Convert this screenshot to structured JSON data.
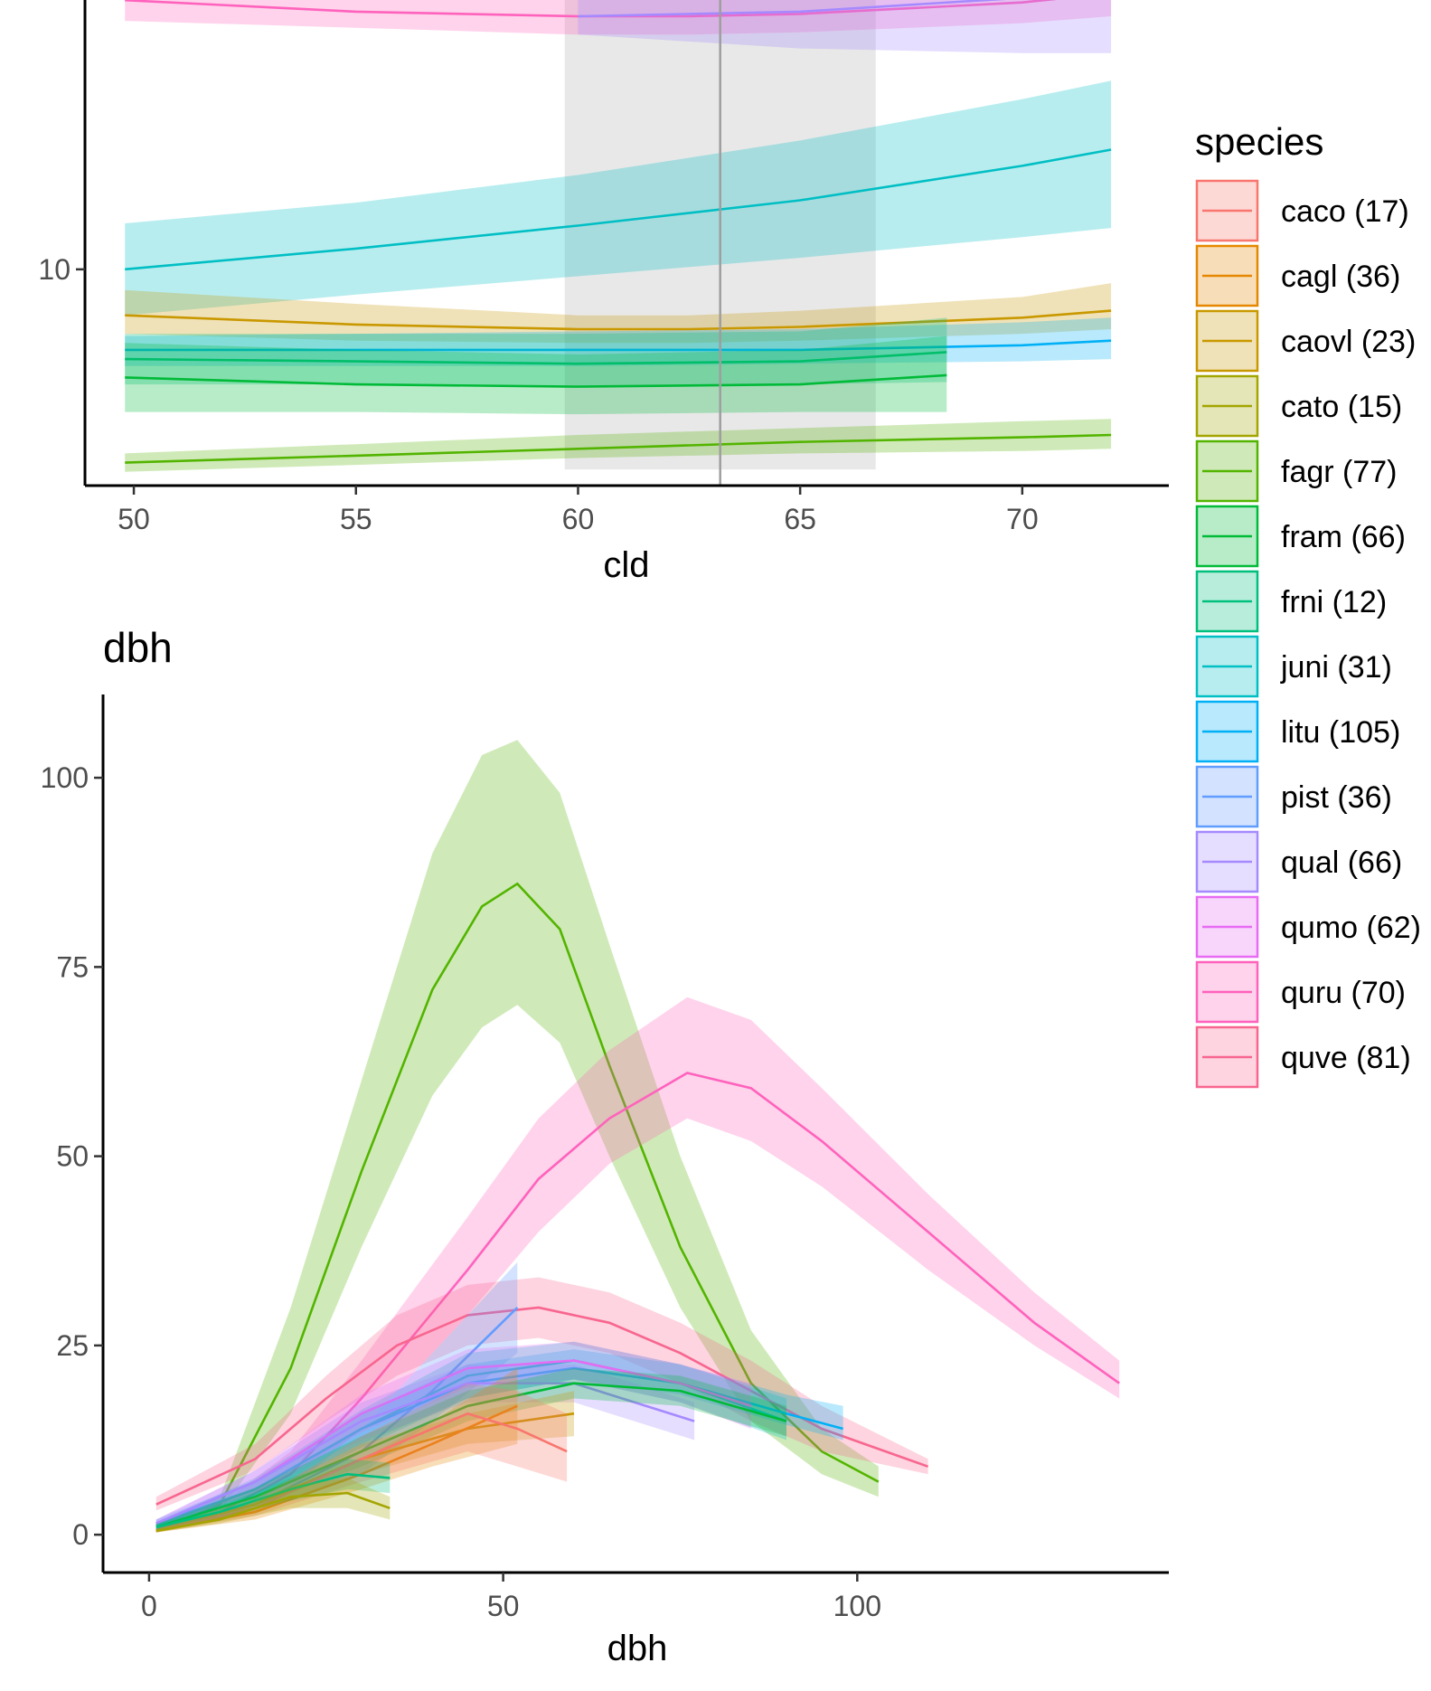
{
  "colors": {
    "caco": "#F8766D",
    "cagl": "#E58700",
    "caovl": "#C99800",
    "cato": "#A3A500",
    "fagr": "#53B400",
    "fram": "#00BA38",
    "frni": "#00BF7D",
    "juni": "#00BFC4",
    "litu": "#00B0F6",
    "pist": "#619CFF",
    "qual": "#A58AFF",
    "qumo": "#E76BF3",
    "quru": "#FF62BC",
    "quve": "#F8668F"
  },
  "legend": {
    "title": "species",
    "items": [
      {
        "key": "caco",
        "label": "caco (17)"
      },
      {
        "key": "cagl",
        "label": "cagl (36)"
      },
      {
        "key": "caovl",
        "label": "caovl (23)"
      },
      {
        "key": "cato",
        "label": "cato (15)"
      },
      {
        "key": "fagr",
        "label": "fagr (77)"
      },
      {
        "key": "fram",
        "label": "fram (66)"
      },
      {
        "key": "frni",
        "label": "frni (12)"
      },
      {
        "key": "juni",
        "label": "juni (31)"
      },
      {
        "key": "litu",
        "label": "litu (105)"
      },
      {
        "key": "pist",
        "label": "pist (36)"
      },
      {
        "key": "qual",
        "label": "qual (66)"
      },
      {
        "key": "qumo",
        "label": "qumo (62)"
      },
      {
        "key": "quru",
        "label": "quru (70)"
      },
      {
        "key": "quve",
        "label": "quve (81)"
      }
    ]
  },
  "chart_data": [
    {
      "type": "line",
      "title": "",
      "xlabel": "cld",
      "ylabel": "",
      "xlim": [
        48.9,
        73.3
      ],
      "ylim": [
        0.6,
        22.1
      ],
      "xticks": [
        50,
        55,
        60,
        65,
        70
      ],
      "yticks": [
        10
      ],
      "grid": false,
      "highlight_band": {
        "x": [
          59.7,
          66.7
        ],
        "ylim": [
          1.3,
          22.1
        ]
      },
      "reference_line": {
        "x": 63.2
      },
      "series": [
        {
          "key": "quru",
          "x": [
            49.8,
            55,
            60,
            62.5,
            65,
            70,
            72
          ],
          "y": [
            21.7,
            21.2,
            21.0,
            21.0,
            21.1,
            21.6,
            22.0
          ],
          "lower": [
            20.8,
            20.5,
            20.2,
            20.2,
            20.3,
            20.7,
            21.0
          ],
          "upper": [
            22.6,
            22.3,
            22.2,
            22.2,
            22.3,
            22.6,
            22.8
          ]
        },
        {
          "key": "qual",
          "x": [
            60,
            65,
            70,
            72
          ],
          "y": [
            21.0,
            21.2,
            21.8,
            22.2
          ],
          "lower": [
            20.2,
            19.6,
            19.4,
            19.4
          ],
          "upper": [
            22.6,
            22.8,
            23.2,
            23.6
          ]
        },
        {
          "key": "juni",
          "x": [
            49.8,
            55,
            60,
            65,
            70,
            72
          ],
          "y": [
            10.0,
            10.9,
            11.9,
            13.0,
            14.5,
            15.2
          ],
          "lower": [
            8.0,
            8.9,
            9.7,
            10.5,
            11.4,
            11.8
          ],
          "upper": [
            12.0,
            12.9,
            14.1,
            15.6,
            17.4,
            18.2
          ]
        },
        {
          "key": "caovl",
          "x": [
            49.8,
            55,
            60,
            62.5,
            65,
            70,
            72
          ],
          "y": [
            8.0,
            7.6,
            7.4,
            7.4,
            7.5,
            7.9,
            8.2
          ],
          "lower": [
            7.2,
            6.9,
            6.8,
            6.8,
            6.9,
            7.2,
            7.4
          ],
          "upper": [
            9.1,
            8.5,
            8.0,
            8.0,
            8.2,
            8.8,
            9.4
          ]
        },
        {
          "key": "litu",
          "x": [
            49.8,
            55,
            60,
            65,
            70,
            72
          ],
          "y": [
            6.5,
            6.5,
            6.5,
            6.5,
            6.7,
            6.9
          ],
          "lower": [
            5.8,
            5.8,
            5.8,
            5.9,
            6.0,
            6.1
          ],
          "upper": [
            7.1,
            7.2,
            7.3,
            7.4,
            7.7,
            7.9
          ]
        },
        {
          "key": "frni",
          "x": [
            49.8,
            55,
            60,
            65,
            68.3
          ],
          "y": [
            6.1,
            6.0,
            5.9,
            6.0,
            6.4
          ],
          "lower": [
            5.0,
            5.0,
            4.9,
            5.0,
            5.1
          ],
          "upper": [
            7.2,
            7.2,
            7.2,
            7.3,
            7.9
          ]
        },
        {
          "key": "fram",
          "x": [
            49.8,
            55,
            60,
            65,
            68.3
          ],
          "y": [
            5.3,
            5.0,
            4.9,
            5.0,
            5.4
          ],
          "lower": [
            3.8,
            3.8,
            3.7,
            3.8,
            3.8
          ],
          "upper": [
            6.8,
            6.5,
            6.3,
            6.5,
            7.1
          ]
        },
        {
          "key": "fagr",
          "x": [
            49.8,
            55,
            60,
            65,
            70,
            72
          ],
          "y": [
            1.6,
            1.9,
            2.2,
            2.5,
            2.7,
            2.8
          ],
          "lower": [
            1.2,
            1.5,
            1.8,
            2.0,
            2.1,
            2.2
          ],
          "upper": [
            2.0,
            2.4,
            2.8,
            3.1,
            3.4,
            3.5
          ]
        }
      ]
    },
    {
      "type": "line",
      "title": "dbh",
      "xlabel": "dbh",
      "ylabel": "",
      "xlim": [
        -6.5,
        144
      ],
      "ylim": [
        -5,
        111
      ],
      "xticks": [
        0,
        50,
        100
      ],
      "yticks": [
        0,
        25,
        50,
        75,
        100
      ],
      "grid": false,
      "series": [
        {
          "key": "fagr",
          "x": [
            1,
            10,
            20,
            30,
            40,
            47,
            52,
            58,
            65,
            75,
            85,
            95,
            103
          ],
          "y": [
            0.5,
            4,
            22,
            48,
            72,
            83,
            86,
            80,
            62,
            38,
            20,
            11,
            7
          ],
          "lower": [
            0.3,
            3,
            16,
            38,
            58,
            67,
            70,
            65,
            50,
            30,
            15,
            8,
            5
          ],
          "upper": [
            0.8,
            5,
            30,
            60,
            90,
            103,
            105,
            98,
            78,
            50,
            27,
            14,
            9
          ]
        },
        {
          "key": "quru",
          "x": [
            1,
            10,
            20,
            30,
            45,
            55,
            65,
            76,
            85,
            95,
            110,
            125,
            137
          ],
          "y": [
            0.7,
            3,
            8,
            18,
            35,
            47,
            55,
            61,
            59,
            52,
            40,
            28,
            20
          ],
          "lower": [
            0.4,
            2,
            6,
            14,
            29,
            40,
            49,
            55,
            52,
            46,
            35,
            25,
            18
          ],
          "upper": [
            1,
            4,
            11,
            23,
            42,
            55,
            64,
            71,
            68,
            59,
            45,
            32,
            23
          ]
        },
        {
          "key": "quve",
          "x": [
            1,
            15,
            25,
            35,
            45,
            55,
            65,
            75,
            85,
            95,
            110
          ],
          "y": [
            4,
            10,
            18,
            25,
            29,
            30,
            28,
            24,
            19,
            14,
            9
          ],
          "lower": [
            3.2,
            8.5,
            15,
            21,
            25,
            26,
            24,
            20,
            15,
            11,
            8
          ],
          "upper": [
            5,
            12,
            21,
            29,
            33,
            34,
            32,
            28,
            23,
            17,
            10
          ]
        },
        {
          "key": "pist",
          "x": [
            1,
            15,
            30,
            40,
            52
          ],
          "y": [
            1,
            4,
            11,
            19,
            30
          ],
          "lower": [
            0.6,
            3,
            8,
            15,
            24
          ],
          "upper": [
            1.5,
            5.5,
            14,
            24,
            36
          ]
        },
        {
          "key": "litu",
          "x": [
            1,
            15,
            30,
            45,
            60,
            75,
            90,
            98
          ],
          "y": [
            1.5,
            6,
            14,
            20,
            22,
            20,
            16,
            14
          ],
          "lower": [
            1,
            4.8,
            12,
            18,
            20.5,
            18.5,
            14.5,
            12.5
          ],
          "upper": [
            2,
            7.2,
            16,
            22.5,
            24.5,
            22.5,
            18.5,
            17
          ]
        },
        {
          "key": "juni",
          "x": [
            1,
            15,
            30,
            45,
            60,
            75,
            90
          ],
          "y": [
            1.2,
            6,
            14,
            21,
            23,
            20,
            15
          ],
          "lower": [
            0.8,
            4.5,
            11.5,
            18,
            20.5,
            17.5,
            12.5
          ],
          "upper": [
            1.6,
            7.5,
            16.5,
            24,
            25.5,
            22.5,
            18
          ]
        },
        {
          "key": "qumo",
          "x": [
            1,
            15,
            30,
            45,
            60,
            75,
            85
          ],
          "y": [
            1.5,
            7,
            16,
            22,
            23,
            20,
            17
          ],
          "lower": [
            1,
            5.5,
            13.5,
            19.5,
            20.5,
            17.5,
            14
          ],
          "upper": [
            2,
            8.5,
            18.5,
            24.5,
            25.5,
            22.5,
            20
          ]
        },
        {
          "key": "qual",
          "x": [
            1,
            15,
            30,
            45,
            60,
            77
          ],
          "y": [
            1.5,
            7,
            15,
            20,
            20,
            15
          ],
          "lower": [
            1,
            5.5,
            12.5,
            17.5,
            17.5,
            12.5
          ],
          "upper": [
            2,
            8.5,
            17.5,
            22.5,
            22.5,
            17.5
          ]
        },
        {
          "key": "fram",
          "x": [
            1,
            15,
            30,
            45,
            60,
            75,
            90
          ],
          "y": [
            1,
            5,
            11,
            17,
            20,
            19,
            15
          ],
          "lower": [
            0.6,
            3.8,
            9,
            15,
            18,
            17,
            13
          ],
          "upper": [
            1.4,
            6.2,
            13,
            19,
            22,
            21,
            17
          ]
        },
        {
          "key": "caovl",
          "x": [
            1,
            15,
            30,
            45,
            60
          ],
          "y": [
            0.5,
            4,
            10,
            14,
            16
          ],
          "lower": [
            0.3,
            3,
            8,
            12,
            13
          ],
          "upper": [
            0.8,
            5,
            12,
            16,
            19
          ]
        },
        {
          "key": "cagl",
          "x": [
            1,
            15,
            30,
            40,
            52
          ],
          "y": [
            0.5,
            3,
            8,
            12,
            17
          ],
          "lower": [
            0.3,
            2,
            6,
            9,
            12
          ],
          "upper": [
            0.8,
            4,
            10,
            15,
            22
          ]
        },
        {
          "key": "caco",
          "x": [
            1,
            15,
            30,
            45,
            52,
            59
          ],
          "y": [
            0.5,
            3.5,
            10,
            16,
            14,
            11
          ],
          "lower": [
            0.3,
            2.5,
            7,
            11,
            9,
            7
          ],
          "upper": [
            0.8,
            4.5,
            13,
            20,
            19,
            16
          ]
        },
        {
          "key": "frni",
          "x": [
            1,
            10,
            20,
            28,
            34
          ],
          "y": [
            1,
            3,
            6,
            8,
            7.5
          ],
          "lower": [
            0.6,
            2.2,
            4.5,
            6,
            5.5
          ],
          "upper": [
            1.4,
            3.8,
            7.5,
            10,
            9.5
          ]
        },
        {
          "key": "cato",
          "x": [
            1,
            10,
            20,
            28,
            34
          ],
          "y": [
            0.5,
            2,
            5,
            5.5,
            3.5
          ],
          "lower": [
            0.3,
            1.5,
            3.5,
            3.5,
            2
          ],
          "upper": [
            0.8,
            2.5,
            6.5,
            7.5,
            5
          ]
        }
      ]
    }
  ]
}
